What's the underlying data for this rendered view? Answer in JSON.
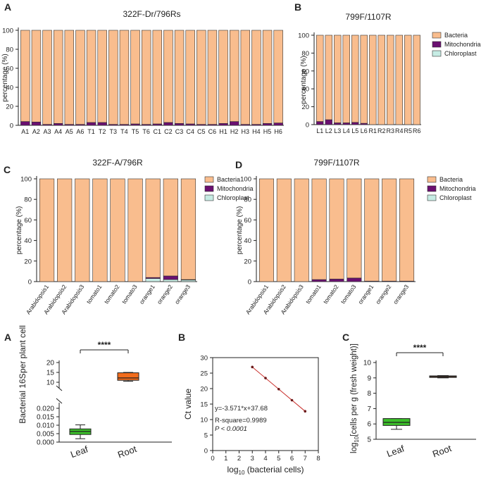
{
  "chart_data": [
    {
      "panel": "A",
      "type": "bar",
      "stacked": true,
      "title": "322F-Dr/796Rs",
      "ylabel": "percentage (%)",
      "ylim": [
        0,
        100
      ],
      "yticks": [
        0,
        20,
        40,
        60,
        80,
        100
      ],
      "categories": [
        "A1",
        "A2",
        "A3",
        "A4",
        "A5",
        "A6",
        "T1",
        "T2",
        "T3",
        "T4",
        "T5",
        "T6",
        "C1",
        "C2",
        "C3",
        "C4",
        "C5",
        "C6",
        "H1",
        "H2",
        "H3",
        "H4",
        "H5",
        "H6"
      ],
      "series": [
        {
          "name": "Chloroplast",
          "color": "#c6ece4",
          "values": [
            0,
            0,
            0,
            0,
            0,
            0,
            0,
            0,
            0,
            0,
            0,
            0,
            0,
            0,
            0,
            0,
            0,
            0,
            0,
            0,
            0,
            0,
            0,
            0
          ]
        },
        {
          "name": "Mitochondria",
          "color": "#6a0f70",
          "values": [
            4,
            3.5,
            1,
            2,
            1,
            1,
            3,
            3,
            1,
            1,
            1.5,
            1,
            1.5,
            3,
            2,
            1.5,
            1,
            1,
            2,
            4,
            1,
            1,
            2,
            2.5
          ]
        },
        {
          "name": "Bacteria",
          "color": "#f9bd8e",
          "values": [
            96,
            96.5,
            99,
            98,
            99,
            99,
            97,
            97,
            99,
            99,
            98.5,
            99,
            98.5,
            97,
            98,
            98.5,
            99,
            99,
            98,
            96,
            99,
            99,
            98,
            97.5
          ]
        }
      ]
    },
    {
      "panel": "B",
      "type": "bar",
      "stacked": true,
      "title": "799F/1107R",
      "ylabel": "percentage (%)",
      "ylim": [
        0,
        100
      ],
      "yticks": [
        0,
        20,
        40,
        60,
        80,
        100
      ],
      "categories": [
        "L1",
        "L2",
        "L3",
        "L4",
        "L5",
        "L6",
        "R1",
        "R2",
        "R3",
        "R4",
        "R5",
        "R6"
      ],
      "series": [
        {
          "name": "Chloroplast",
          "color": "#c6ece4",
          "values": [
            0,
            0,
            0,
            0,
            0,
            0,
            0,
            0,
            0,
            0,
            0,
            0
          ]
        },
        {
          "name": "Mitochondria",
          "color": "#6a0f70",
          "values": [
            3.5,
            5.5,
            2,
            2,
            2.5,
            1.5,
            0,
            0,
            0,
            0,
            0,
            0
          ]
        },
        {
          "name": "Bacteria",
          "color": "#f9bd8e",
          "values": [
            96.5,
            94.5,
            98,
            98,
            97.5,
            98.5,
            100,
            100,
            100,
            100,
            100,
            100
          ]
        }
      ],
      "legend": [
        "Bacteria",
        "Mitochondria",
        "Chloroplast"
      ]
    },
    {
      "panel": "C",
      "type": "bar",
      "stacked": true,
      "title": "322F-A/796R",
      "ylabel": "percentage (%)",
      "ylim": [
        0,
        100
      ],
      "yticks": [
        0,
        20,
        40,
        60,
        80,
        100
      ],
      "categories": [
        "Arabidopsis1",
        "Arabidopsis2",
        "Arabidopsis3",
        "tomato1",
        "tomato2",
        "tomato3",
        "orange1",
        "orange2",
        "orange3"
      ],
      "series": [
        {
          "name": "Chloroplast",
          "color": "#c6ece4",
          "values": [
            0,
            0,
            0,
            0,
            0,
            0,
            3,
            2,
            1.5
          ]
        },
        {
          "name": "Mitochondria",
          "color": "#6a0f70",
          "values": [
            0,
            0,
            0,
            0,
            0,
            0,
            1,
            3.5,
            0.5
          ]
        },
        {
          "name": "Bacteria",
          "color": "#f9bd8e",
          "values": [
            100,
            100,
            100,
            100,
            100,
            100,
            96,
            94.5,
            98
          ]
        }
      ],
      "legend": [
        "Bacteria",
        "Mitochondria",
        "Chloroplast"
      ]
    },
    {
      "panel": "D",
      "type": "bar",
      "stacked": true,
      "title": "799F/1107R",
      "ylabel": "percentage (%)",
      "ylim": [
        0,
        100
      ],
      "yticks": [
        0,
        20,
        40,
        60,
        80,
        100
      ],
      "categories": [
        "Arabidopsis1",
        "Arabidopsis2",
        "Arabidopsis3",
        "tomato1",
        "tomato2",
        "tomato3",
        "orange1",
        "orange2",
        "orange3"
      ],
      "series": [
        {
          "name": "Chloroplast",
          "color": "#c6ece4",
          "values": [
            0,
            0,
            0,
            0,
            0,
            0,
            0,
            0,
            0
          ]
        },
        {
          "name": "Mitochondria",
          "color": "#6a0f70",
          "values": [
            0,
            0,
            0,
            2,
            2.5,
            3.5,
            0.5,
            0.5,
            0.5
          ]
        },
        {
          "name": "Bacteria",
          "color": "#f9bd8e",
          "values": [
            100,
            100,
            100,
            98,
            97.5,
            96.5,
            99.5,
            99.5,
            99.5
          ]
        }
      ],
      "legend": [
        "Bacteria",
        "Mitochondria",
        "Chloroplast"
      ]
    },
    {
      "panel": "A",
      "type": "box",
      "ylabel_main": "Bacterial 16S",
      "ylabel_sub": "per plant cell",
      "upper_ticks": [
        "10",
        "15",
        "20"
      ],
      "lower_ticks": [
        "0.000",
        "0.005",
        "0.010",
        "0.015",
        "0.020"
      ],
      "categories": [
        "Leaf",
        "Root"
      ],
      "boxes": [
        {
          "name": "Leaf",
          "color": "#3bbf2a",
          "min": 0.002,
          "q1": 0.0045,
          "median": 0.0063,
          "q3": 0.0078,
          "max": 0.0102
        },
        {
          "name": "Root",
          "color": "#f26c1c",
          "min": 10.5,
          "q1": 11.0,
          "median": 12.2,
          "q3": 14.8,
          "max": 15.0
        }
      ],
      "significance": "****"
    },
    {
      "panel": "B",
      "type": "scatter",
      "xlabel_prefix": "log",
      "xlabel_sub": "10",
      "xlabel_suffix": " (bacterial cells)",
      "ylabel": "Ct value",
      "xlim": [
        0,
        8
      ],
      "ylim": [
        0,
        30
      ],
      "xticks": [
        0,
        1,
        2,
        3,
        4,
        5,
        6,
        7,
        8
      ],
      "yticks": [
        0,
        5,
        10,
        15,
        20,
        25,
        30
      ],
      "x": [
        3,
        4,
        5,
        6,
        7
      ],
      "y": [
        26.97,
        23.4,
        19.83,
        16.25,
        12.68
      ],
      "fit": {
        "slope": -3.571,
        "intercept": 37.68
      },
      "equation": "y=-3.571*x+37.68",
      "r_square": "R-square=0.9989",
      "p_value": "P < 0.0001"
    },
    {
      "panel": "C",
      "type": "box",
      "ylabel_prefix": "log",
      "ylabel_sub": "10",
      "ylabel_suffix": "[cells per g (fresh weight)]",
      "ylim": [
        5,
        10
      ],
      "yticks": [
        "5",
        "6",
        "7",
        "8",
        "9",
        "10"
      ],
      "categories": [
        "Leaf",
        "Root"
      ],
      "boxes": [
        {
          "name": "Leaf",
          "color": "#3bbf2a",
          "min": 5.65,
          "q1": 5.9,
          "median": 6.1,
          "q3": 6.35,
          "max": 6.35
        },
        {
          "name": "Root",
          "color": "#f26c1c",
          "min": 9.0,
          "q1": 9.03,
          "median": 9.08,
          "q3": 9.13,
          "max": 9.15
        }
      ],
      "significance": "****"
    }
  ]
}
